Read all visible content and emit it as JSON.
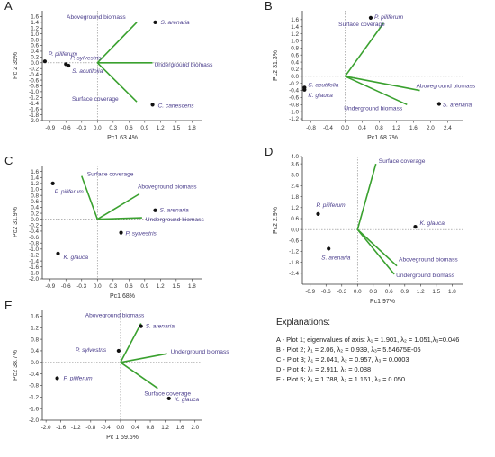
{
  "colors": {
    "vector": "#3aa12f",
    "point": "#111111",
    "label": "#4a3d8c",
    "axis": "#333333",
    "crosshair": "#888888"
  },
  "chart_data": [
    {
      "type": "scatter",
      "panel": "A",
      "xlabel": "Pc1 63.4%",
      "ylabel": "Pc 2 35%",
      "xlim": [
        -1.05,
        2.0
      ],
      "ylim": [
        -2.0,
        1.8
      ],
      "xticks": [
        -0.9,
        -0.6,
        -0.3,
        0.0,
        0.3,
        0.6,
        0.9,
        1.2,
        1.5,
        1.8
      ],
      "yticks": [
        -2.0,
        -1.8,
        -1.6,
        -1.4,
        -1.2,
        -1.0,
        -0.8,
        -0.6,
        -0.4,
        -0.2,
        0.0,
        0.2,
        0.4,
        0.6,
        0.8,
        1.0,
        1.2,
        1.4,
        1.6
      ],
      "points": [
        {
          "name": "S. arenaria",
          "x": 1.1,
          "y": 1.4
        },
        {
          "name": "P. piliferum",
          "x": -1.0,
          "y": 0.05
        },
        {
          "name": "P. sylvestris",
          "x": -0.6,
          "y": -0.05
        },
        {
          "name": "S. acutifolia",
          "x": -0.55,
          "y": -0.1
        },
        {
          "name": "C. canescens",
          "x": 1.05,
          "y": -1.45
        }
      ],
      "vectors": [
        {
          "name": "Aboveground biomass",
          "x": 0.75,
          "y": 1.4
        },
        {
          "name": "Underground biomass",
          "x": 1.05,
          "y": 0.0
        },
        {
          "name": "Surface coverage",
          "x": 0.75,
          "y": -1.35
        }
      ]
    },
    {
      "type": "scatter",
      "panel": "B",
      "xlabel": "Pc1 68.7%",
      "ylabel": "Pc2 31.3%",
      "xlim": [
        -1.0,
        2.75
      ],
      "ylim": [
        -1.25,
        1.85
      ],
      "xticks": [
        -0.8,
        -0.4,
        0.0,
        0.4,
        0.8,
        1.2,
        1.6,
        2.0,
        2.4
      ],
      "yticks": [
        -1.2,
        -1.0,
        -0.8,
        -0.6,
        -0.4,
        -0.2,
        0.0,
        0.2,
        0.4,
        0.6,
        0.8,
        1.0,
        1.2,
        1.4,
        1.6
      ],
      "points": [
        {
          "name": "P. piliferum",
          "x": 0.6,
          "y": 1.65
        },
        {
          "name": "S. acutifolia",
          "x": -0.95,
          "y": -0.32
        },
        {
          "name": "K. glauca",
          "x": -0.95,
          "y": -0.38
        },
        {
          "name": "S. arenaria",
          "x": 2.2,
          "y": -0.78
        }
      ],
      "vectors": [
        {
          "name": "Surface coverage",
          "x": 0.9,
          "y": 1.5
        },
        {
          "name": "Aboveground biomass",
          "x": 1.75,
          "y": -0.4
        },
        {
          "name": "Underground biomass",
          "x": 1.45,
          "y": -0.8
        }
      ]
    },
    {
      "type": "scatter",
      "panel": "C",
      "xlabel": "Pc1 68%",
      "ylabel": "Pc2 31.9%",
      "xlim": [
        -1.05,
        2.0
      ],
      "ylim": [
        -2.0,
        1.8
      ],
      "xticks": [
        -0.9,
        -0.6,
        -0.3,
        0.0,
        0.3,
        0.6,
        0.9,
        1.2,
        1.5,
        1.8
      ],
      "yticks": [
        -2.0,
        -1.8,
        -1.6,
        -1.4,
        -1.2,
        -1.0,
        -0.8,
        -0.6,
        -0.4,
        -0.2,
        0.0,
        0.2,
        0.4,
        0.6,
        0.8,
        1.0,
        1.2,
        1.4,
        1.6
      ],
      "points": [
        {
          "name": "P. piliferum",
          "x": -0.85,
          "y": 1.2
        },
        {
          "name": "S. arenaria",
          "x": 1.1,
          "y": 0.3
        },
        {
          "name": "P. sylvestris",
          "x": 0.45,
          "y": -0.45
        },
        {
          "name": "K. glauca",
          "x": -0.75,
          "y": -1.15
        }
      ],
      "vectors": [
        {
          "name": "Surface coverage",
          "x": -0.3,
          "y": 1.45
        },
        {
          "name": "Aboveground biomass",
          "x": 0.8,
          "y": 0.85
        },
        {
          "name": "Underground biomass",
          "x": 0.85,
          "y": 0.05
        }
      ]
    },
    {
      "type": "scatter",
      "panel": "D",
      "xlabel": "Pc1 97%",
      "ylabel": "Pc2 2.9%",
      "xlim": [
        -1.05,
        2.0
      ],
      "ylim": [
        -3.0,
        4.0
      ],
      "xticks": [
        -0.9,
        -0.6,
        -0.3,
        0.0,
        0.3,
        0.6,
        0.9,
        1.2,
        1.5,
        1.8
      ],
      "yticks": [
        -2.4,
        -1.8,
        -1.2,
        -0.6,
        0.0,
        0.6,
        1.2,
        1.8,
        2.4,
        3.0,
        3.6,
        4.0
      ],
      "points": [
        {
          "name": "P. piliferum",
          "x": -0.75,
          "y": 0.85
        },
        {
          "name": "K. glauca",
          "x": 1.1,
          "y": 0.15
        },
        {
          "name": "S. arenaria",
          "x": -0.55,
          "y": -1.05
        }
      ],
      "vectors": [
        {
          "name": "Surface coverage",
          "x": 0.35,
          "y": 3.6
        },
        {
          "name": "Aboveground biomass",
          "x": 0.75,
          "y": -2.0
        },
        {
          "name": "Underground biomass",
          "x": 0.7,
          "y": -2.45
        }
      ]
    },
    {
      "type": "scatter",
      "panel": "E",
      "xlabel": "Pc 1 59.6%",
      "ylabel": "Pc2 38.7%",
      "xlim": [
        -2.1,
        2.2
      ],
      "ylim": [
        -2.0,
        1.8
      ],
      "xticks": [
        -2.0,
        -1.6,
        -1.2,
        -0.8,
        -0.4,
        0.0,
        0.4,
        0.8,
        1.2,
        1.6,
        2.0
      ],
      "yticks": [
        -2.0,
        -1.6,
        -1.2,
        -0.8,
        -0.4,
        0.0,
        0.4,
        0.8,
        1.2,
        1.6
      ],
      "points": [
        {
          "name": "S. arenaria",
          "x": 0.55,
          "y": 1.25
        },
        {
          "name": "P. sylvestris",
          "x": -0.05,
          "y": 0.4
        },
        {
          "name": "P. piliferum",
          "x": -1.7,
          "y": -0.55
        },
        {
          "name": "K. glauca",
          "x": 1.3,
          "y": -1.25
        }
      ],
      "vectors": [
        {
          "name": "Aboveground biomass",
          "x": 0.55,
          "y": 1.35
        },
        {
          "name": "Underground biomass",
          "x": 1.25,
          "y": 0.3
        },
        {
          "name": "Surface coverage",
          "x": 1.0,
          "y": -0.9
        }
      ]
    }
  ],
  "explanations": {
    "title": "Explanations:",
    "lines": [
      "A - Plot 1; eigenvalues of axis: λ₁ = 1.901, λ₂ = 1.051,λ₃=0.046",
      "B - Plot 2; λ₁ = 2.06, λ₂ = 0.939, λ₃= 5.54675E-05",
      "C - Plot 3; λ₁ = 2.041, λ₂ = 0.957, λ₃ = 0.0003",
      "D - Plot 4; λ₁ = 2.911, λ₂ = 0.088",
      "E - Plot 5; λ₁ = 1.788, λ₂ = 1.161, λ₃ = 0.050"
    ]
  }
}
